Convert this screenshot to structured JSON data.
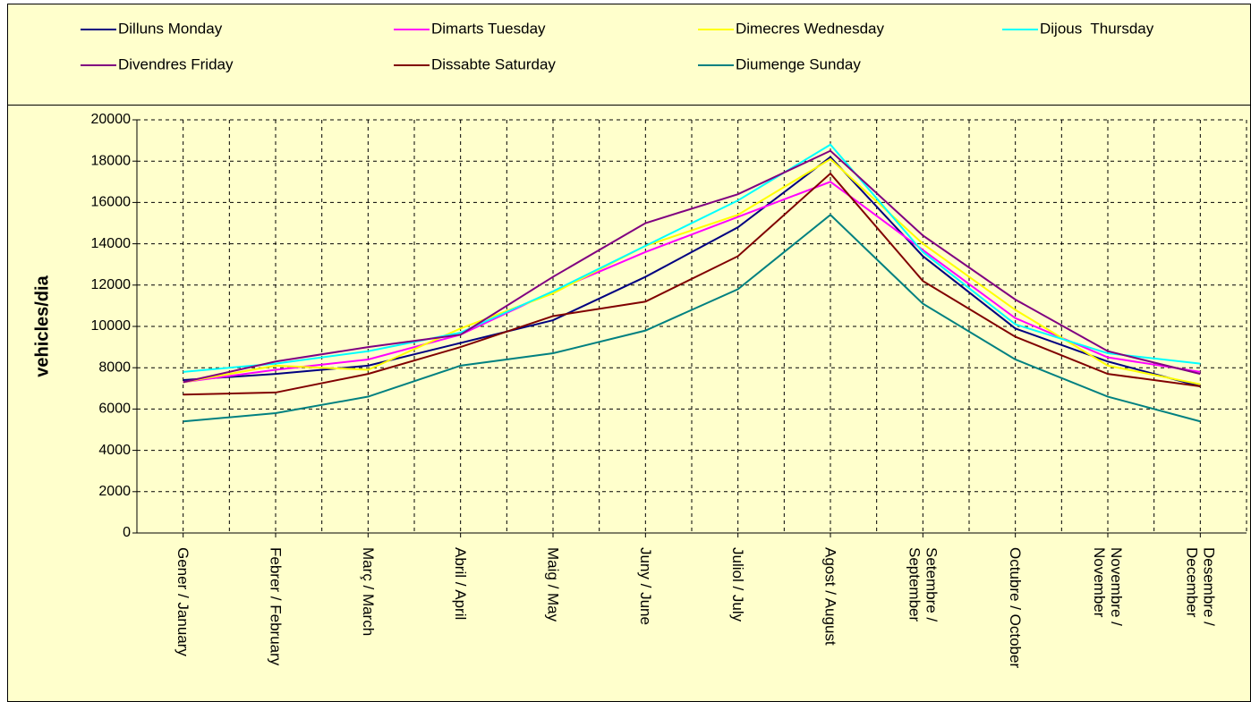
{
  "chart_data": {
    "type": "line",
    "y_label": "vehicles/dia",
    "categories": [
      "Gener / January",
      "Febrer / February",
      "Març / March",
      "Abril / April",
      "Maig / May",
      "Juny / June",
      "Juliol / July",
      "Agost / August",
      "Setembre / September",
      "Octubre / October",
      "Novembre / November",
      "Desembre / December"
    ],
    "series": [
      {
        "name": "Dilluns Monday",
        "color": "#000080",
        "values": [
          7400,
          7700,
          8100,
          9200,
          10300,
          12400,
          14800,
          18200,
          13400,
          9900,
          8300,
          7100
        ]
      },
      {
        "name": "Dimarts Tuesday",
        "color": "#ff00ff",
        "values": [
          7300,
          7900,
          8400,
          9600,
          11700,
          13600,
          15300,
          17000,
          13700,
          10400,
          8500,
          7800
        ]
      },
      {
        "name": "Dimecres Wednesday",
        "color": "#ffff00",
        "values": [
          7300,
          8100,
          7900,
          9900,
          11600,
          13900,
          15400,
          18100,
          14000,
          10800,
          8100,
          7200
        ]
      },
      {
        "name": "Dijous  Thursday",
        "color": "#00ffff",
        "values": [
          7800,
          8200,
          8800,
          9700,
          11700,
          13900,
          16100,
          18800,
          13600,
          10100,
          8700,
          8200
        ]
      },
      {
        "name": "Divendres Friday",
        "color": "#800080",
        "values": [
          7300,
          8300,
          9000,
          9600,
          12400,
          15000,
          16400,
          18500,
          14400,
          11300,
          8800,
          7700
        ]
      },
      {
        "name": "Dissabte Saturday",
        "color": "#800000",
        "values": [
          6700,
          6800,
          7700,
          9000,
          10500,
          11200,
          13400,
          17400,
          12200,
          9500,
          7700,
          7100
        ]
      },
      {
        "name": "Diumenge Sunday",
        "color": "#008080",
        "values": [
          5400,
          5800,
          6600,
          8100,
          8700,
          9800,
          11800,
          15400,
          11100,
          8400,
          6600,
          5400
        ]
      }
    ],
    "ylim": [
      0,
      20000
    ],
    "yticks": [
      0,
      2000,
      4000,
      6000,
      8000,
      10000,
      12000,
      14000,
      16000,
      18000,
      20000
    ],
    "grid": true,
    "legend": "top"
  }
}
